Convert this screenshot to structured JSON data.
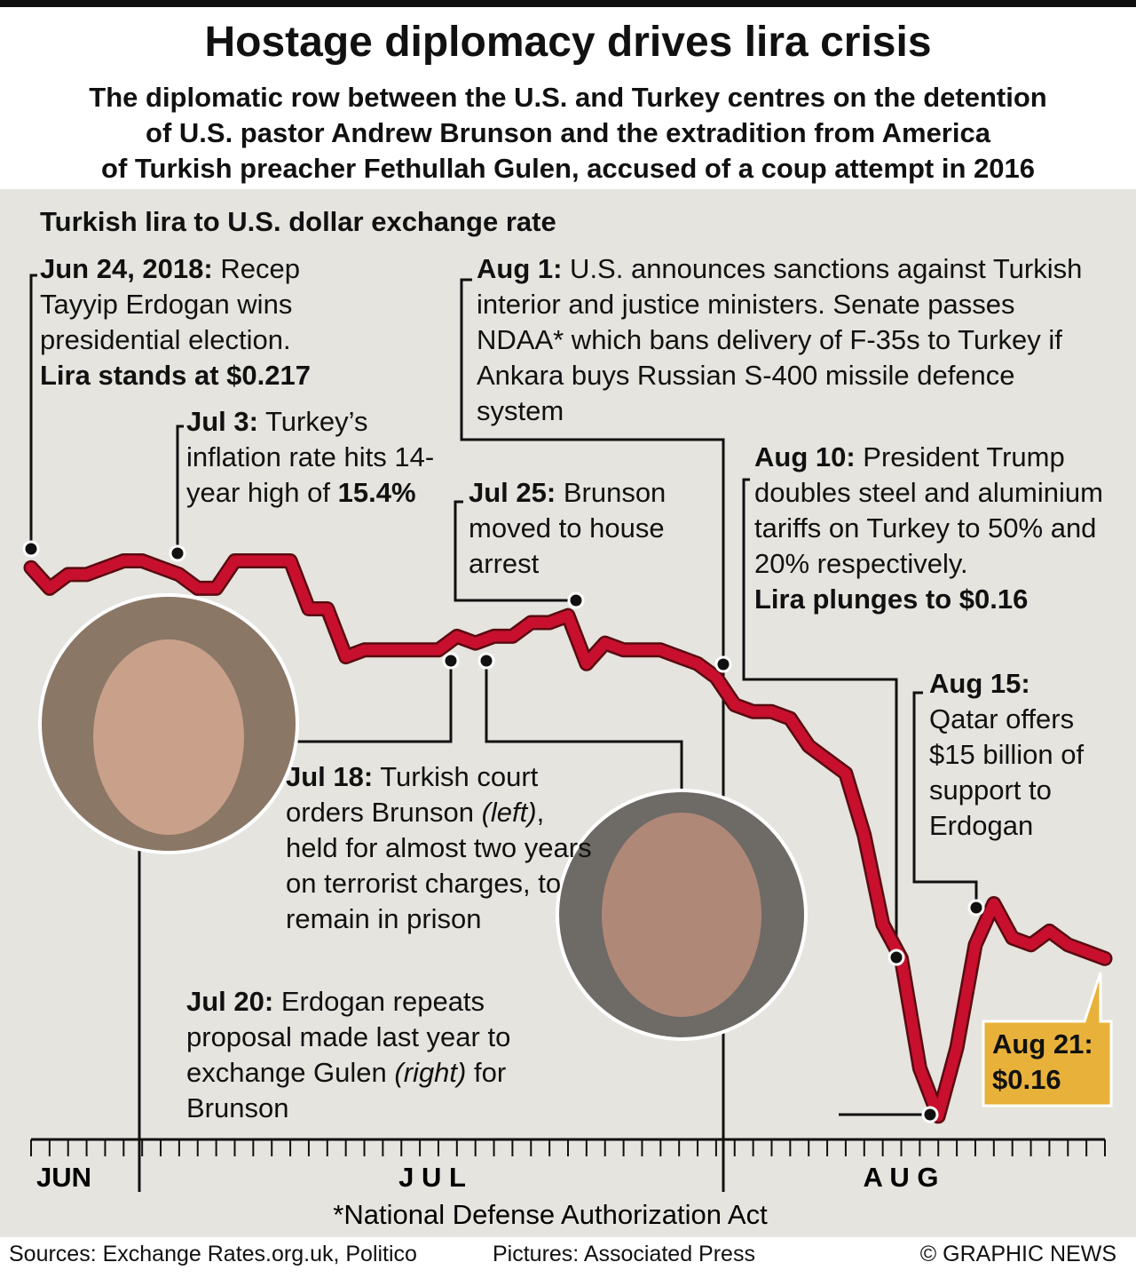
{
  "header": {
    "title": "Hostage diplomacy drives lira crisis",
    "subtitle_lines": [
      "The diplomatic row between the U.S. and Turkey centres on the detention",
      "of U.S. pastor Andrew Brunson and the extradition from America",
      "of Turkish preacher Fethullah Gulen, accused of a coup attempt in 2016"
    ]
  },
  "chart_data": {
    "type": "line",
    "title": "Turkish lira to U.S. dollar exchange rate",
    "month_labels": [
      "JUN",
      "J U L",
      "A U G"
    ],
    "series": [
      {
        "name": "Lira",
        "color": "#c8102e",
        "values": [
          0.217,
          0.214,
          0.216,
          0.216,
          0.217,
          0.218,
          0.218,
          0.217,
          0.216,
          0.214,
          0.214,
          0.218,
          0.218,
          0.218,
          0.218,
          0.211,
          0.211,
          0.204,
          0.205,
          0.205,
          0.205,
          0.205,
          0.205,
          0.207,
          0.206,
          0.207,
          0.207,
          0.209,
          0.209,
          0.21,
          0.203,
          0.206,
          0.205,
          0.205,
          0.205,
          0.204,
          0.203,
          0.201,
          0.197,
          0.196,
          0.196,
          0.195,
          0.191,
          0.189,
          0.187,
          0.178,
          0.165,
          0.16,
          0.144,
          0.137,
          0.147,
          0.162,
          0.168,
          0.163,
          0.162,
          0.164,
          0.162,
          0.161,
          0.16
        ]
      }
    ],
    "ylim": [
      0.134,
      0.27
    ],
    "callout": {
      "date": "Aug 21:",
      "value": "$0.16"
    }
  },
  "annotations": {
    "jun24": {
      "date": "Jun 24, 2018:",
      "text": " Recep Tayyip Erdogan wins presidential election.",
      "bold": "Lira stands at $0.217"
    },
    "jul3": {
      "date": "Jul 3:",
      "text": " Turkey’s inflation rate hits 14-year high of ",
      "bold": "15.4%"
    },
    "aug1": {
      "date": "Aug 1:",
      "text": " U.S. announces sanctions against Turkish interior and justice ministers. Senate passes NDAA* which bans delivery of F-35s to Turkey if Ankara buys Russian S-400 missile defence system"
    },
    "jul25": {
      "date": "Jul 25:",
      "text": " Brunson moved to house arrest"
    },
    "aug10": {
      "date": "Aug 10:",
      "text": " President Trump doubles steel and aluminium tariffs on Turkey to 50% and 20% respectively.",
      "bold": "Lira plunges to $0.16"
    },
    "aug15": {
      "date": "Aug 15:",
      "text": "Qatar offers $15 billion of support to Erdogan"
    },
    "jul18": {
      "date": "Jul 18:",
      "text": " Turkish court orders Brunson ",
      "italic": "(left)",
      "text2": ", held for almost two years on terrorist charges, to remain in prison"
    },
    "jul20": {
      "date": "Jul 20:",
      "text": " Erdogan repeats proposal made last year to exchange Gulen ",
      "italic": "(right)",
      "text2": " for Brunson"
    }
  },
  "footnote": "*National Defense Authorization Act",
  "footer": {
    "sources": "Sources: Exchange Rates.org.uk, Politico",
    "pictures": "Pictures: Associated Press",
    "credit": "© GRAPHIC NEWS"
  }
}
